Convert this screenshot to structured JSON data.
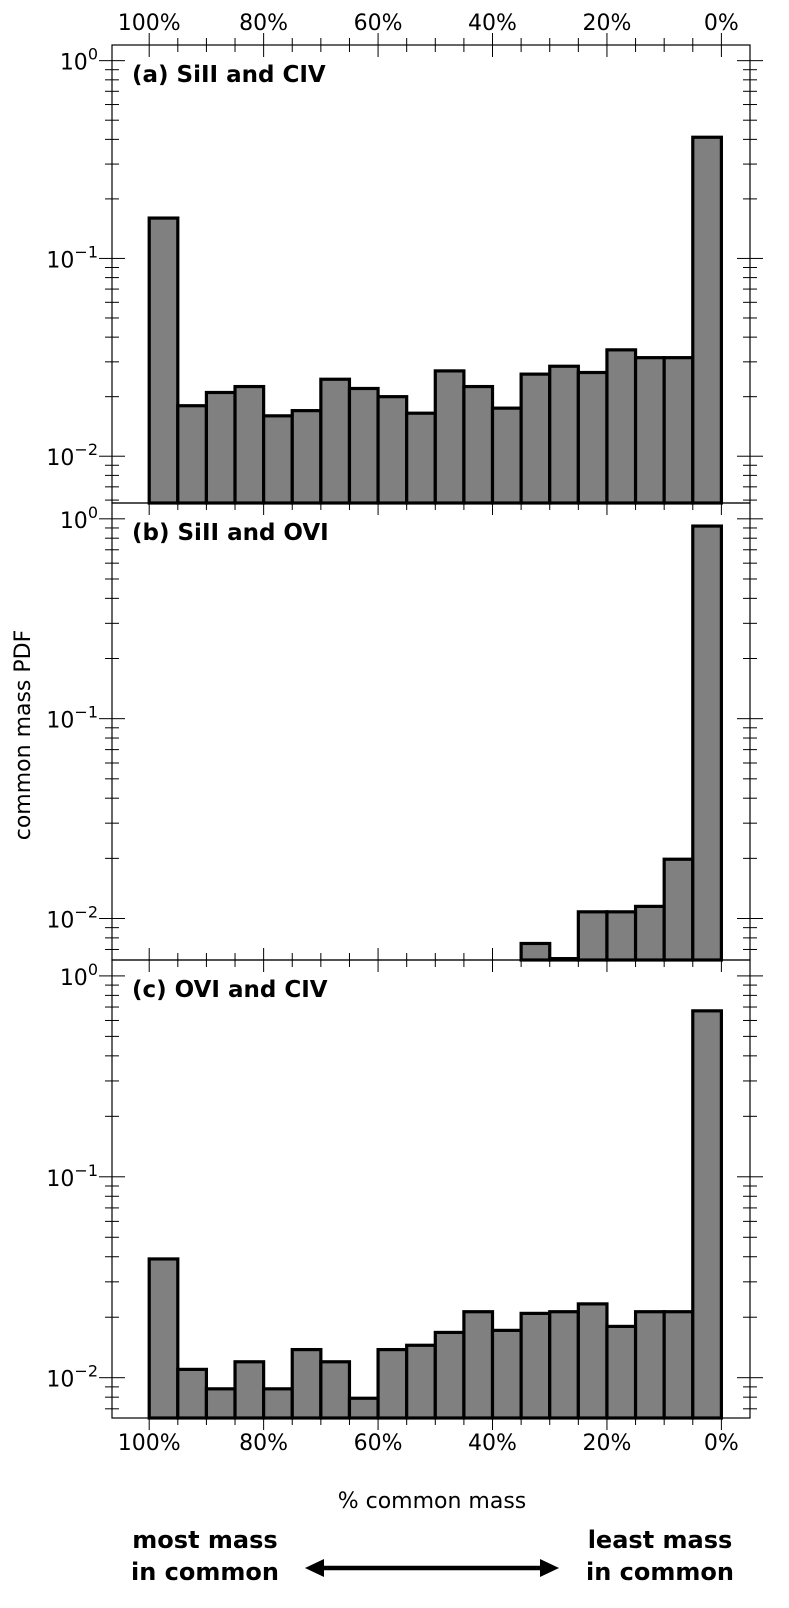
{
  "chart_data": [
    {
      "type": "bar",
      "title": "(a) SiII and CIV",
      "yscale": "log",
      "ylim": [
        0.0058,
        1.2
      ],
      "xlim": [
        106.5,
        -5.0
      ],
      "bin_edges": [
        100,
        95,
        90,
        85,
        80,
        75,
        70,
        65,
        60,
        55,
        50,
        45,
        40,
        35,
        30,
        25,
        20,
        15,
        10,
        5,
        0
      ],
      "values": [
        0.16,
        0.018,
        0.021,
        0.0225,
        0.016,
        0.017,
        0.0245,
        0.022,
        0.02,
        0.0165,
        0.027,
        0.0225,
        0.0175,
        0.026,
        0.0285,
        0.0265,
        0.0345,
        0.0315,
        0.0315,
        0.41
      ]
    },
    {
      "type": "bar",
      "title": "(b) SiII and OVI",
      "yscale": "log",
      "ylim": [
        0.0062,
        1.2
      ],
      "xlim": [
        106.5,
        -5.0
      ],
      "bin_edges": [
        100,
        95,
        90,
        85,
        80,
        75,
        70,
        65,
        60,
        55,
        50,
        45,
        40,
        35,
        30,
        25,
        20,
        15,
        10,
        5,
        0
      ],
      "values": [
        0,
        0,
        0,
        0,
        0,
        0,
        0,
        0,
        0,
        0,
        0,
        0,
        0,
        0.0075,
        0.0063,
        0.0108,
        0.0108,
        0.0115,
        0.0198,
        0.92
      ]
    },
    {
      "type": "bar",
      "title": "(c) OVI and CIV",
      "yscale": "log",
      "ylim": [
        0.0063,
        1.2
      ],
      "xlim": [
        106.5,
        -5.0
      ],
      "bin_edges": [
        100,
        95,
        90,
        85,
        80,
        75,
        70,
        65,
        60,
        55,
        50,
        45,
        40,
        35,
        30,
        25,
        20,
        15,
        10,
        5,
        0
      ],
      "values": [
        0.039,
        0.011,
        0.0088,
        0.012,
        0.0088,
        0.0138,
        0.012,
        0.0079,
        0.0138,
        0.0145,
        0.0168,
        0.0213,
        0.0172,
        0.0209,
        0.0213,
        0.0233,
        0.018,
        0.0213,
        0.0213,
        0.67
      ]
    }
  ],
  "axes": {
    "ylabel": "common mass PDF",
    "xlabel": "% common mass",
    "x_ticks": [
      100,
      80,
      60,
      40,
      20,
      0
    ],
    "x_tick_labels": [
      "100%",
      "80%",
      "60%",
      "40%",
      "20%",
      "0%"
    ],
    "y_tick_labels": [
      {
        "base": "10",
        "exp": "0"
      },
      {
        "base": "10",
        "exp": "−1"
      },
      {
        "base": "10",
        "exp": "−2"
      }
    ]
  },
  "annotations": {
    "left_line1": "most mass",
    "left_line2": "in common",
    "right_line1": "least mass",
    "right_line2": "in common"
  },
  "colors": {
    "bar_fill": "#808080",
    "bar_edge": "#000000"
  }
}
